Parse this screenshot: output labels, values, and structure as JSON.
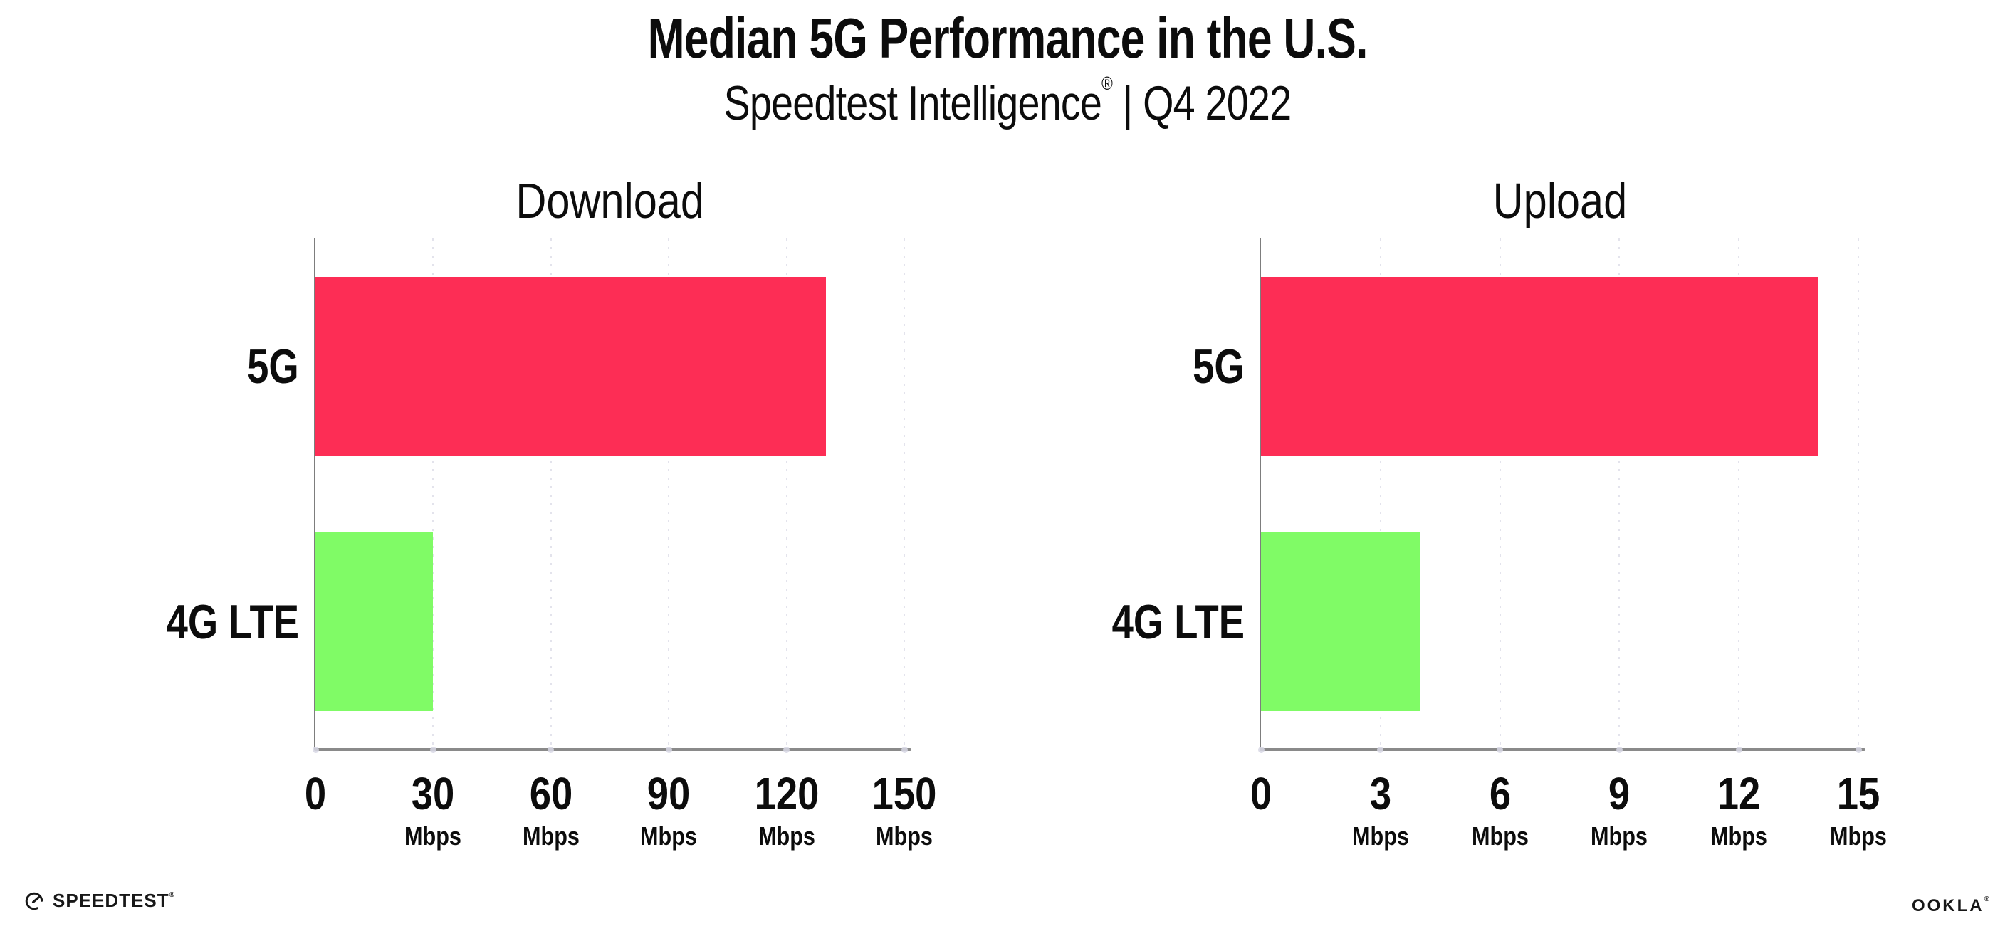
{
  "header": {
    "title": "Median 5G Performance in the U.S.",
    "subtitle_brand": "Speedtest Intelligence",
    "subtitle_reg": "®",
    "subtitle_rest": "| Q4 2022"
  },
  "footer": {
    "speedtest_label": "SPEEDTEST",
    "speedtest_reg": "®",
    "ookla_label": "OOKLA",
    "ookla_reg": "®"
  },
  "colors": {
    "bar_5g": "#FD2D55",
    "bar_4g_lte": "#80FB66",
    "gridline": "#E3E3EC",
    "axis_line": "#8A8A8A",
    "y_axis_line": "#7D7D7D",
    "tick_dot": "#D7D7E4",
    "text": "#0C0C0C"
  },
  "chart_data": [
    {
      "type": "bar",
      "orientation": "horizontal",
      "title": "Download",
      "categories": [
        "5G",
        "4G LTE"
      ],
      "values": [
        130,
        30
      ],
      "bar_colors": [
        "#FD2D55",
        "#80FB66"
      ],
      "xlim": [
        0,
        150
      ],
      "xticks": [
        0,
        30,
        60,
        90,
        120,
        150
      ],
      "tick_unit": "Mbps",
      "grid": "vertical-dotted",
      "legend": "none"
    },
    {
      "type": "bar",
      "orientation": "horizontal",
      "title": "Upload",
      "categories": [
        "5G",
        "4G LTE"
      ],
      "values": [
        14,
        4
      ],
      "bar_colors": [
        "#FD2D55",
        "#80FB66"
      ],
      "xlim": [
        0,
        15
      ],
      "xticks": [
        0,
        3,
        6,
        9,
        12,
        15
      ],
      "tick_unit": "Mbps",
      "grid": "vertical-dotted",
      "legend": "none"
    }
  ]
}
